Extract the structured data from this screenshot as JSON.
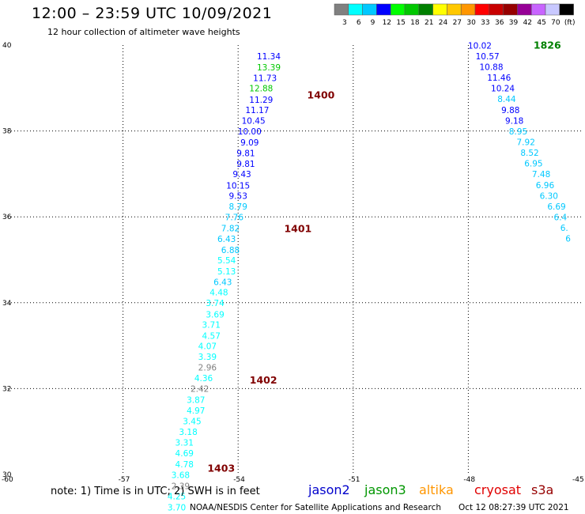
{
  "header": {
    "title": "12:00 – 23:59 UTC 10/09/2021",
    "subtitle": "12 hour collection of altimeter wave heights"
  },
  "legend": {
    "colors": [
      "#808080",
      "#00ffff",
      "#00c8ff",
      "#0000ff",
      "#00ff00",
      "#00c800",
      "#008000",
      "#ffff00",
      "#ffc800",
      "#ff9600",
      "#ff0000",
      "#c80000",
      "#960000",
      "#960096",
      "#c864ff",
      "#c8c8ff",
      "#000000"
    ],
    "labels": [
      "3",
      "6",
      "9",
      "12",
      "15",
      "18",
      "21",
      "24",
      "27",
      "30",
      "33",
      "36",
      "39",
      "42",
      "45",
      "70",
      "(ft)"
    ]
  },
  "axes": {
    "lon": {
      "min": -60,
      "max": -45,
      "ticks": [
        -60,
        -57,
        -54,
        -51,
        -48,
        -45
      ],
      "tick_labels": [
        "-60",
        "-57",
        "-54",
        "-51",
        "-48",
        "-45"
      ]
    },
    "lat": {
      "min": 30,
      "max": 40,
      "ticks": [
        30,
        32,
        34,
        36,
        38,
        40
      ],
      "tick_labels": [
        "30",
        "32",
        "34",
        "36",
        "38",
        "40"
      ]
    },
    "grid": true
  },
  "footer": {
    "note": "note: 1) Time is in UTC; 2) SWH is in feet",
    "credit": "NOAA/NESDIS Center for Satellite Applications and Research",
    "timestamp": "Oct 12 08:27:39 UTC 2021",
    "satellites": [
      {
        "name": "jason2",
        "color": "#0000cc"
      },
      {
        "name": "jason3",
        "color": "#009600"
      },
      {
        "name": "altika",
        "color": "#ff9600"
      },
      {
        "name": "cryosat",
        "color": "#e00000"
      },
      {
        "name": "s3a",
        "color": "#960000"
      }
    ]
  },
  "chart_data": {
    "type": "scatter",
    "xlabel": "",
    "ylabel": "",
    "xlim": [
      -60,
      -45
    ],
    "ylim": [
      30,
      40
    ],
    "time_labels": [
      {
        "text": "1400",
        "lon": -52.2,
        "lat": 38.76
      },
      {
        "text": "1401",
        "lon": -52.8,
        "lat": 35.64
      },
      {
        "text": "1402",
        "lon": -53.7,
        "lat": 32.12
      },
      {
        "text": "1403",
        "lon": -54.8,
        "lat": 30.06
      },
      {
        "text": "1826",
        "lon": -46.3,
        "lat": 39.92
      }
    ],
    "series": [
      {
        "points": [
          {
            "lon": -53.2,
            "lat": 39.67,
            "v": "11.34",
            "c": "#0000ff"
          },
          {
            "lon": -53.2,
            "lat": 39.41,
            "v": "13.39",
            "c": "#00c800"
          },
          {
            "lon": -53.3,
            "lat": 39.16,
            "v": "11.73",
            "c": "#0000ff"
          },
          {
            "lon": -53.4,
            "lat": 38.92,
            "v": "12.88",
            "c": "#00c800"
          },
          {
            "lon": -53.4,
            "lat": 38.66,
            "v": "11.29",
            "c": "#0000ff"
          },
          {
            "lon": -53.5,
            "lat": 38.42,
            "v": "11.17",
            "c": "#0000ff"
          },
          {
            "lon": -53.6,
            "lat": 38.17,
            "v": "10.45",
            "c": "#0000ff"
          },
          {
            "lon": -53.7,
            "lat": 37.92,
            "v": "10.00",
            "c": "#0000ff"
          },
          {
            "lon": -53.7,
            "lat": 37.66,
            "v": "9.09",
            "c": "#0000ff"
          },
          {
            "lon": -53.8,
            "lat": 37.41,
            "v": "9.81",
            "c": "#0000ff"
          },
          {
            "lon": -53.8,
            "lat": 37.16,
            "v": "9.81",
            "c": "#0000ff"
          },
          {
            "lon": -53.9,
            "lat": 36.92,
            "v": "9.43",
            "c": "#0000ff"
          },
          {
            "lon": -54.0,
            "lat": 36.66,
            "v": "10.15",
            "c": "#0000ff"
          },
          {
            "lon": -54.0,
            "lat": 36.42,
            "v": "9.53",
            "c": "#0000ff"
          },
          {
            "lon": -54.0,
            "lat": 36.17,
            "v": "8.79",
            "c": "#00c8ff"
          },
          {
            "lon": -54.1,
            "lat": 35.92,
            "v": "7.76",
            "c": "#00c8ff"
          },
          {
            "lon": -54.2,
            "lat": 35.66,
            "v": "7.82",
            "c": "#00c8ff"
          },
          {
            "lon": -54.3,
            "lat": 35.41,
            "v": "6.43",
            "c": "#00c8ff"
          },
          {
            "lon": -54.2,
            "lat": 35.16,
            "v": "6.88",
            "c": "#00c8ff"
          },
          {
            "lon": -54.3,
            "lat": 34.92,
            "v": "5.54",
            "c": "#00ffff"
          },
          {
            "lon": -54.3,
            "lat": 34.66,
            "v": "5.13",
            "c": "#00ffff"
          },
          {
            "lon": -54.4,
            "lat": 34.41,
            "v": "6.43",
            "c": "#00c8ff"
          },
          {
            "lon": -54.5,
            "lat": 34.17,
            "v": "4.48",
            "c": "#00ffff"
          },
          {
            "lon": -54.6,
            "lat": 33.92,
            "v": "3.74",
            "c": "#00ffff"
          },
          {
            "lon": -54.6,
            "lat": 33.66,
            "v": "3.69",
            "c": "#00ffff"
          },
          {
            "lon": -54.7,
            "lat": 33.42,
            "v": "3.71",
            "c": "#00ffff"
          },
          {
            "lon": -54.7,
            "lat": 33.16,
            "v": "4.57",
            "c": "#00ffff"
          },
          {
            "lon": -54.8,
            "lat": 32.92,
            "v": "4.07",
            "c": "#00ffff"
          },
          {
            "lon": -54.8,
            "lat": 32.67,
            "v": "3.39",
            "c": "#00ffff"
          },
          {
            "lon": -54.8,
            "lat": 32.42,
            "v": "2.96",
            "c": "#808080"
          },
          {
            "lon": -54.9,
            "lat": 32.17,
            "v": "4.36",
            "c": "#00ffff"
          },
          {
            "lon": -55.0,
            "lat": 31.92,
            "v": "2.42",
            "c": "#808080"
          },
          {
            "lon": -55.1,
            "lat": 31.67,
            "v": "3.87",
            "c": "#00ffff"
          },
          {
            "lon": -55.1,
            "lat": 31.42,
            "v": "4.97",
            "c": "#00ffff"
          },
          {
            "lon": -55.2,
            "lat": 31.17,
            "v": "3.45",
            "c": "#00ffff"
          },
          {
            "lon": -55.3,
            "lat": 30.92,
            "v": "3.18",
            "c": "#00ffff"
          },
          {
            "lon": -55.4,
            "lat": 30.67,
            "v": "3.31",
            "c": "#00ffff"
          },
          {
            "lon": -55.4,
            "lat": 30.42,
            "v": "4.69",
            "c": "#00ffff"
          },
          {
            "lon": -55.4,
            "lat": 30.17,
            "v": "4.78",
            "c": "#00ffff"
          },
          {
            "lon": -55.5,
            "lat": 29.92,
            "v": "3.68",
            "c": "#00ffff"
          },
          {
            "lon": -55.5,
            "lat": 29.66,
            "v": "2.39",
            "c": "#808080"
          },
          {
            "lon": -55.6,
            "lat": 29.42,
            "v": "4.25",
            "c": "#00ffff"
          },
          {
            "lon": -55.6,
            "lat": 29.16,
            "v": "3.70",
            "c": "#00ffff"
          }
        ]
      },
      {
        "points": [
          {
            "lon": -47.7,
            "lat": 39.92,
            "v": "10.02",
            "c": "#0000ff"
          },
          {
            "lon": -47.5,
            "lat": 39.67,
            "v": "10.57",
            "c": "#0000ff"
          },
          {
            "lon": -47.4,
            "lat": 39.42,
            "v": "10.88",
            "c": "#0000ff"
          },
          {
            "lon": -47.2,
            "lat": 39.17,
            "v": "11.46",
            "c": "#0000ff"
          },
          {
            "lon": -47.1,
            "lat": 38.92,
            "v": "10.24",
            "c": "#0000ff"
          },
          {
            "lon": -47.0,
            "lat": 38.67,
            "v": "8.44",
            "c": "#00c8ff"
          },
          {
            "lon": -46.9,
            "lat": 38.42,
            "v": "9.88",
            "c": "#0000ff"
          },
          {
            "lon": -46.8,
            "lat": 38.17,
            "v": "9.18",
            "c": "#0000ff"
          },
          {
            "lon": -46.7,
            "lat": 37.92,
            "v": "8.95",
            "c": "#00c8ff"
          },
          {
            "lon": -46.5,
            "lat": 37.67,
            "v": "7.92",
            "c": "#00c8ff"
          },
          {
            "lon": -46.4,
            "lat": 37.42,
            "v": "8.52",
            "c": "#00c8ff"
          },
          {
            "lon": -46.3,
            "lat": 37.17,
            "v": "6.95",
            "c": "#00c8ff"
          },
          {
            "lon": -46.1,
            "lat": 36.92,
            "v": "7.48",
            "c": "#00c8ff"
          },
          {
            "lon": -46.0,
            "lat": 36.67,
            "v": "6.96",
            "c": "#00c8ff"
          },
          {
            "lon": -45.9,
            "lat": 36.42,
            "v": "6.30",
            "c": "#00c8ff"
          },
          {
            "lon": -45.7,
            "lat": 36.17,
            "v": "6.69",
            "c": "#00c8ff"
          },
          {
            "lon": -45.6,
            "lat": 35.92,
            "v": "6.4",
            "c": "#00c8ff"
          },
          {
            "lon": -45.5,
            "lat": 35.67,
            "v": "6.",
            "c": "#00c8ff"
          },
          {
            "lon": -45.4,
            "lat": 35.42,
            "v": "6",
            "c": "#00c8ff"
          }
        ]
      }
    ]
  }
}
